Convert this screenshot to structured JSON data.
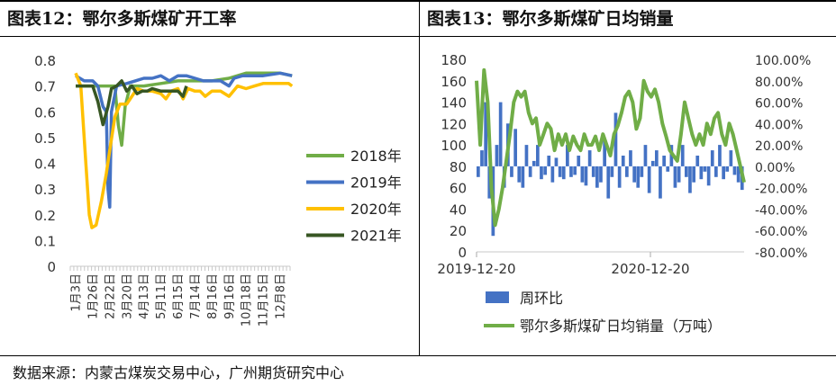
{
  "left_title": "图表12：鄂尔多斯煤矿开工率",
  "right_title": "图表13：鄂尔多斯煤矿日均销量",
  "source": "数据来源：内蒙古煤炭交易中心，广州期货研究中心",
  "chart_data": [
    {
      "type": "line",
      "title": "鄂尔多斯煤矿开工率",
      "ylim": [
        0,
        0.8
      ],
      "yticks": [
        "0",
        "0.1",
        "0.2",
        "0.3",
        "0.4",
        "0.5",
        "0.6",
        "0.7",
        "0.8"
      ],
      "xticks": [
        "1月3日",
        "1月26日",
        "2月22日",
        "3月20日",
        "4月13日",
        "5月11日",
        "6月15日",
        "7月14日",
        "8月16日",
        "9月16日",
        "10月18日",
        "11月15日",
        "12月8日"
      ],
      "legend_position": "right",
      "series": [
        {
          "name": "2018年",
          "color": "#70AD47",
          "points": [
            [
              0.0,
              0.7
            ],
            [
              0.5,
              0.7
            ],
            [
              1.0,
              0.7
            ],
            [
              1.5,
              0.7
            ],
            [
              2.0,
              0.7
            ],
            [
              2.3,
              0.7
            ],
            [
              2.5,
              0.55
            ],
            [
              2.7,
              0.47
            ],
            [
              2.9,
              0.62
            ],
            [
              3.2,
              0.7
            ],
            [
              4.0,
              0.7
            ],
            [
              5.0,
              0.71
            ],
            [
              6.0,
              0.72
            ],
            [
              7.0,
              0.72
            ],
            [
              8.0,
              0.72
            ],
            [
              9.0,
              0.73
            ],
            [
              10.0,
              0.75
            ],
            [
              11.0,
              0.75
            ],
            [
              12.0,
              0.75
            ],
            [
              12.7,
              0.74
            ]
          ]
        },
        {
          "name": "2019年",
          "color": "#4472C4",
          "points": [
            [
              0.0,
              0.74
            ],
            [
              0.5,
              0.72
            ],
            [
              1.0,
              0.72
            ],
            [
              1.3,
              0.7
            ],
            [
              1.6,
              0.62
            ],
            [
              1.8,
              0.6
            ],
            [
              1.9,
              0.3
            ],
            [
              2.0,
              0.23
            ],
            [
              2.1,
              0.6
            ],
            [
              2.4,
              0.7
            ],
            [
              3.0,
              0.71
            ],
            [
              3.5,
              0.72
            ],
            [
              4.0,
              0.73
            ],
            [
              4.5,
              0.73
            ],
            [
              5.0,
              0.74
            ],
            [
              5.5,
              0.72
            ],
            [
              6.0,
              0.74
            ],
            [
              6.5,
              0.74
            ],
            [
              7.0,
              0.73
            ],
            [
              7.5,
              0.72
            ],
            [
              8.0,
              0.72
            ],
            [
              8.5,
              0.72
            ],
            [
              9.0,
              0.7
            ],
            [
              9.3,
              0.73
            ],
            [
              9.8,
              0.74
            ],
            [
              10.5,
              0.74
            ],
            [
              11.0,
              0.74
            ],
            [
              12.0,
              0.75
            ],
            [
              12.7,
              0.74
            ]
          ]
        },
        {
          "name": "2020年",
          "color": "#FFC000",
          "points": [
            [
              0.0,
              0.75
            ],
            [
              0.3,
              0.7
            ],
            [
              0.6,
              0.4
            ],
            [
              0.8,
              0.2
            ],
            [
              0.95,
              0.15
            ],
            [
              1.2,
              0.16
            ],
            [
              1.5,
              0.25
            ],
            [
              1.8,
              0.36
            ],
            [
              2.0,
              0.45
            ],
            [
              2.3,
              0.58
            ],
            [
              2.6,
              0.63
            ],
            [
              3.0,
              0.63
            ],
            [
              3.3,
              0.66
            ],
            [
              3.6,
              0.69
            ],
            [
              4.0,
              0.68
            ],
            [
              4.5,
              0.68
            ],
            [
              5.0,
              0.67
            ],
            [
              5.3,
              0.65
            ],
            [
              5.6,
              0.68
            ],
            [
              6.0,
              0.69
            ],
            [
              6.3,
              0.65
            ],
            [
              6.6,
              0.69
            ],
            [
              7.0,
              0.68
            ],
            [
              7.3,
              0.68
            ],
            [
              7.6,
              0.66
            ],
            [
              8.0,
              0.68
            ],
            [
              8.5,
              0.68
            ],
            [
              9.0,
              0.66
            ],
            [
              9.5,
              0.7
            ],
            [
              10.0,
              0.69
            ],
            [
              10.5,
              0.7
            ],
            [
              11.0,
              0.71
            ],
            [
              11.5,
              0.71
            ],
            [
              12.0,
              0.71
            ],
            [
              12.5,
              0.71
            ],
            [
              12.7,
              0.7
            ]
          ]
        },
        {
          "name": "2021年",
          "color": "#375623",
          "points": [
            [
              0.0,
              0.7
            ],
            [
              0.5,
              0.7
            ],
            [
              1.0,
              0.7
            ],
            [
              1.3,
              0.64
            ],
            [
              1.6,
              0.55
            ],
            [
              1.9,
              0.62
            ],
            [
              2.1,
              0.69
            ],
            [
              2.4,
              0.7
            ],
            [
              2.7,
              0.72
            ],
            [
              3.0,
              0.68
            ],
            [
              3.3,
              0.7
            ],
            [
              3.6,
              0.67
            ],
            [
              3.9,
              0.68
            ],
            [
              4.2,
              0.68
            ],
            [
              4.5,
              0.69
            ],
            [
              5.0,
              0.68
            ],
            [
              5.5,
              0.68
            ],
            [
              6.0,
              0.68
            ],
            [
              6.3,
              0.66
            ],
            [
              6.5,
              0.7
            ]
          ]
        }
      ]
    },
    {
      "type": "bar-line-combo",
      "title": "鄂尔多斯煤矿日均销量",
      "ylim_left": [
        0,
        180
      ],
      "yticks_left": [
        "0",
        "20",
        "40",
        "60",
        "80",
        "100",
        "120",
        "140",
        "160",
        "180"
      ],
      "ylim_right": [
        -80,
        100
      ],
      "yticks_right": [
        "-80.00%",
        "-60.00%",
        "-40.00%",
        "-20.00%",
        "0.00%",
        "20.00%",
        "40.00%",
        "60.00%",
        "80.00%",
        "100.00%"
      ],
      "xticks": [
        "2019-12-20",
        "2020-12-20"
      ],
      "legend_position": "bottom",
      "series": [
        {
          "name": "周环比",
          "type": "bar",
          "axis": "right",
          "color": "#4472C4",
          "values": [
            -10,
            15,
            60,
            -30,
            -65,
            20,
            60,
            -20,
            40,
            -10,
            35,
            -15,
            -20,
            20,
            -10,
            5,
            20,
            -12,
            -8,
            10,
            -15,
            8,
            -10,
            -12,
            20,
            -10,
            -8,
            10,
            -15,
            -18,
            15,
            -10,
            -20,
            -15,
            25,
            -30,
            -10,
            50,
            -20,
            10,
            -10,
            15,
            -15,
            -20,
            -10,
            20,
            -25,
            5,
            15,
            -30,
            10,
            -5,
            20,
            -20,
            -15,
            20,
            -10,
            -25,
            -15,
            10,
            -12,
            -5,
            -18,
            15,
            -10,
            20,
            -12,
            -5,
            15,
            -8,
            -15,
            -22
          ]
        },
        {
          "name": "鄂尔多斯煤矿日均销量（万吨）",
          "type": "line",
          "axis": "left",
          "color": "#70AD47",
          "values": [
            160,
            100,
            170,
            140,
            60,
            25,
            40,
            60,
            85,
            110,
            140,
            150,
            145,
            150,
            130,
            120,
            125,
            100,
            110,
            120,
            115,
            95,
            110,
            100,
            110,
            95,
            108,
            100,
            95,
            110,
            100,
            100,
            108,
            95,
            110,
            100,
            90,
            110,
            118,
            130,
            145,
            150,
            140,
            115,
            125,
            160,
            150,
            145,
            152,
            140,
            120,
            108,
            95,
            90,
            85,
            110,
            140,
            125,
            110,
            100,
            110,
            100,
            120,
            110,
            125,
            130,
            110,
            100,
            120,
            110,
            95,
            80,
            65
          ]
        }
      ]
    }
  ]
}
